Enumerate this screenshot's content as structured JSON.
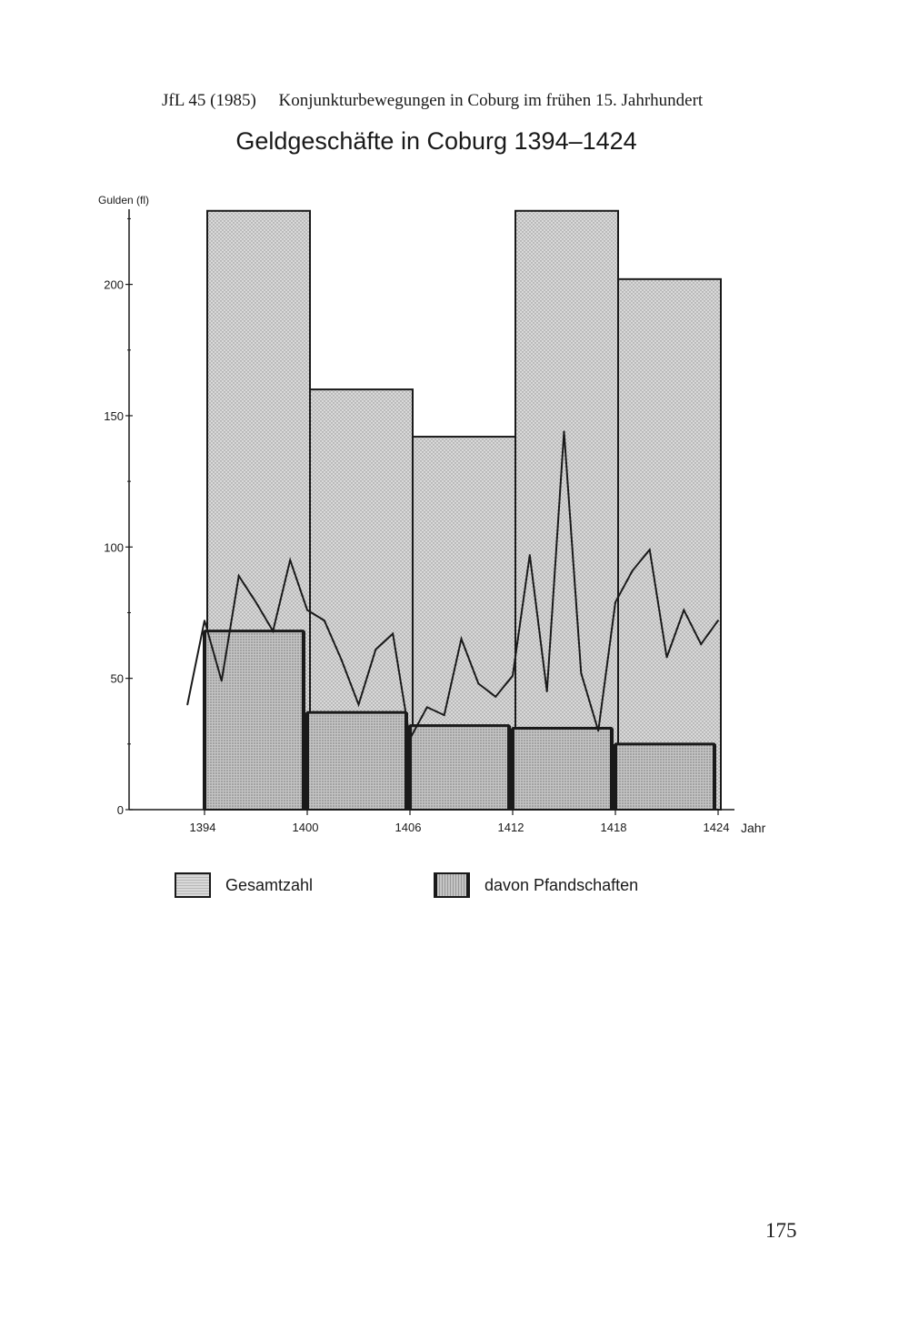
{
  "running_head": {
    "journal": "JfL 45 (1985)",
    "article": "Konjunkturbewegungen in Coburg im frühen 15. Jahrhundert"
  },
  "page_number": "175",
  "colors": {
    "ink": "#1a1a1a",
    "stipple_light": "#d6d6d6",
    "stipple_dark": "#bdbdbd",
    "stipple_dot": "#8a8a8a"
  },
  "chart_data": {
    "type": "bar",
    "title": "Geldgeschäfte in Coburg 1394–1424",
    "ylabel": "Gulden (fl)",
    "xlabel": "Jahr",
    "xlim": [
      1394,
      1424
    ],
    "ylim": [
      0,
      230
    ],
    "yticks": [
      0,
      50,
      100,
      150,
      200
    ],
    "xticks": [
      "1394",
      "1400",
      "1406",
      "1412",
      "1418",
      "1424"
    ],
    "grid": false,
    "legend": {
      "placement": "bottom",
      "entries": [
        "Gesamtzahl",
        "davon Pfandschaften"
      ]
    },
    "periods": [
      {
        "start": 1394,
        "end": 1400
      },
      {
        "start": 1400,
        "end": 1406
      },
      {
        "start": 1406,
        "end": 1412
      },
      {
        "start": 1412,
        "end": 1418
      },
      {
        "start": 1418,
        "end": 1424
      }
    ],
    "series": [
      {
        "name": "Gesamtzahl",
        "type": "bar",
        "values": [
          228,
          160,
          142,
          228,
          202
        ]
      },
      {
        "name": "davon Pfandschaften",
        "type": "bar",
        "values": [
          68,
          37,
          32,
          31,
          25
        ]
      },
      {
        "type": "line",
        "x": [
          1393,
          1394,
          1395,
          1396,
          1397,
          1398,
          1399,
          1400,
          1401,
          1402,
          1403,
          1404,
          1405,
          1406,
          1407,
          1408,
          1409,
          1410,
          1411,
          1412,
          1413,
          1414,
          1415,
          1416,
          1417,
          1418,
          1419,
          1420,
          1421,
          1422,
          1423,
          1424
        ],
        "values": [
          40,
          72,
          49,
          89,
          79,
          68,
          95,
          76,
          72,
          57,
          40,
          61,
          67,
          27,
          39,
          36,
          65,
          48,
          43,
          51,
          97,
          45,
          144,
          52,
          30,
          79,
          91,
          99,
          58,
          76,
          63,
          72
        ]
      }
    ]
  }
}
